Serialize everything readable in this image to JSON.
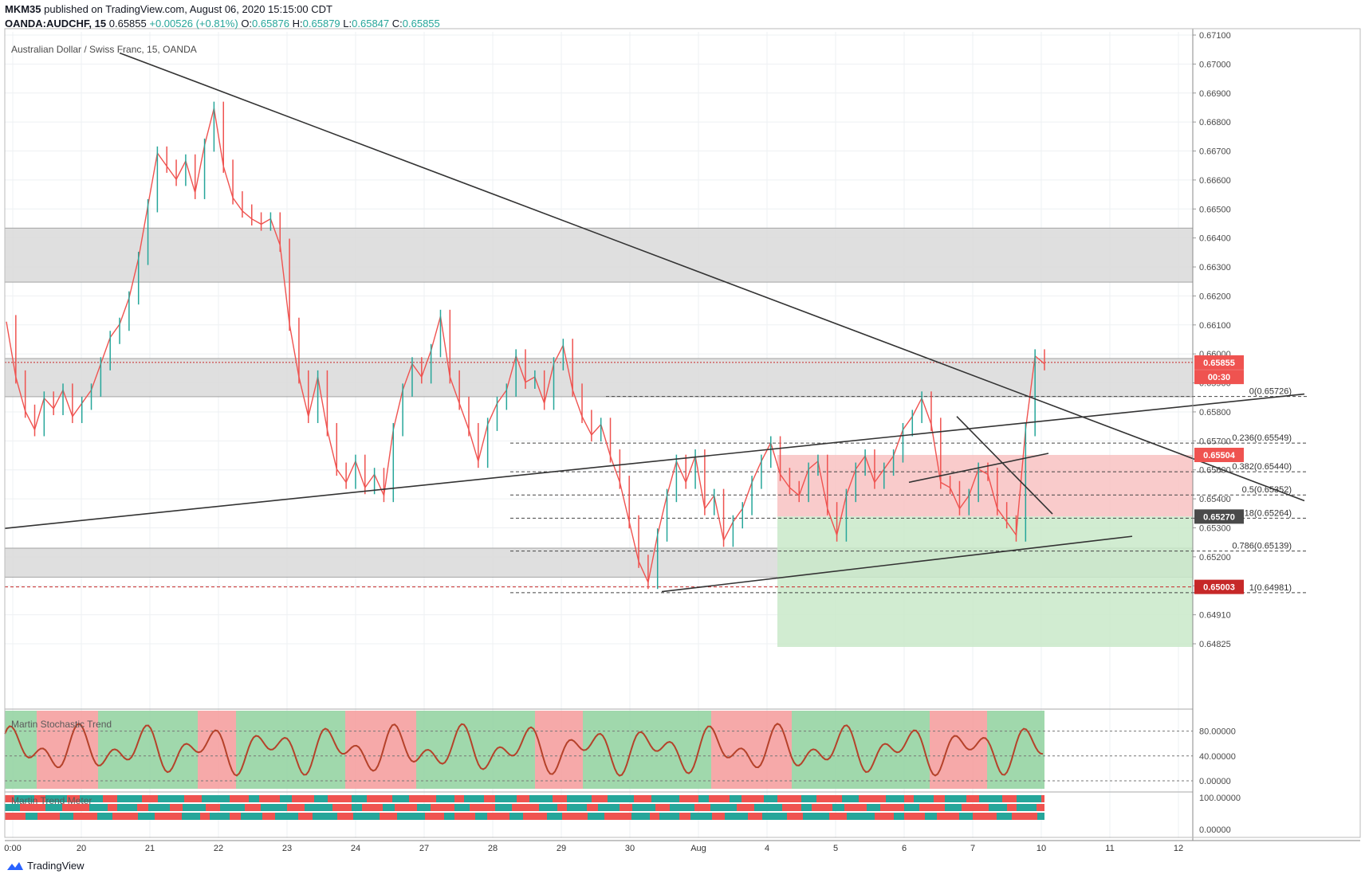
{
  "header": {
    "publisher": "MKM35",
    "published_text": "published on TradingView.com, August 06, 2020 15:15:00 CDT",
    "symbol": "OANDA:AUDCHF, 15",
    "last": "0.65855",
    "change": "+0.00526 (+0.81%)",
    "o_label": "O:",
    "o_val": "0.65876",
    "h_label": "H:",
    "h_val": "0.65879",
    "l_label": "L:",
    "l_val": "0.65847",
    "c_label": "C:",
    "c_val": "0.65855"
  },
  "chart_title": "Australian Dollar / Swiss Franc, 15, OANDA",
  "indicator1_label": "Martin Stochastic Trend",
  "indicator2_label": "Martin Trend Meter",
  "footer_brand": "TradingView",
  "colors": {
    "up": "#26a69a",
    "down": "#ef5350",
    "zone_gray": "#dcdcdc",
    "red_box": "#f8c2c2",
    "green_box": "#c9e9c9",
    "trend_line": "#333333",
    "price_line": "#c62828",
    "stoch_line": "#b5422a",
    "band_green": "#8fd19e",
    "band_red": "#f59a9a"
  },
  "chart_data": {
    "type": "line",
    "title": "Australian Dollar / Swiss Franc, 15, OANDA",
    "x_tick_labels": [
      "0:00",
      "20",
      "21",
      "22",
      "23",
      "24",
      "27",
      "28",
      "29",
      "30",
      "Aug",
      "4",
      "5",
      "6",
      "7",
      "10",
      "11",
      "12"
    ],
    "y_tick_labels": [
      "0.67100",
      "0.67000",
      "0.66900",
      "0.66800",
      "0.66700",
      "0.66600",
      "0.66500",
      "0.66400",
      "0.66300",
      "0.66200",
      "0.66100",
      "0.66000",
      "0.65900",
      "0.65800",
      "0.65700",
      "0.65600",
      "0.65400",
      "0.65300",
      "0.65200",
      "0.65100",
      "0.64910",
      "0.64825"
    ],
    "ylim": [
      0.64775,
      0.6711
    ],
    "series": [
      {
        "values": [
          0.6601,
          0.658,
          0.6567,
          0.656,
          0.6572,
          0.6568,
          0.6575,
          0.6565,
          0.657,
          0.6575,
          0.6585,
          0.6595,
          0.66,
          0.661,
          0.6625,
          0.6645,
          0.6665,
          0.666,
          0.6655,
          0.6662,
          0.665,
          0.6668,
          0.6682,
          0.666,
          0.6648,
          0.6643,
          0.664,
          0.6638,
          0.664,
          0.663,
          0.66,
          0.658,
          0.6565,
          0.658,
          0.656,
          0.6545,
          0.654,
          0.6548,
          0.6538,
          0.6543,
          0.6535,
          0.656,
          0.6575,
          0.6585,
          0.658,
          0.659,
          0.6603,
          0.658,
          0.657,
          0.656,
          0.6548,
          0.6562,
          0.657,
          0.6575,
          0.6588,
          0.6578,
          0.658,
          0.657,
          0.6585,
          0.6592,
          0.6575,
          0.6565,
          0.6558,
          0.6562,
          0.655,
          0.654,
          0.6525,
          0.651,
          0.6502,
          0.652,
          0.6535,
          0.6548,
          0.654,
          0.655,
          0.653,
          0.6535,
          0.6518,
          0.6525,
          0.653,
          0.654,
          0.6548,
          0.6555,
          0.6543,
          0.6538,
          0.6535,
          0.6545,
          0.6548,
          0.653,
          0.652,
          0.6535,
          0.6545,
          0.655,
          0.654,
          0.6545,
          0.655,
          0.656,
          0.6565,
          0.6572,
          0.6562,
          0.654,
          0.6538,
          0.653,
          0.6535,
          0.6545,
          0.6543,
          0.653,
          0.6525,
          0.652,
          0.656,
          0.6588,
          0.6585
        ],
        "approximate": true
      }
    ],
    "horizontal_levels": [
      {
        "label": "0(0.65726)",
        "value": 0.65726
      },
      {
        "label": "0.236(0.65549)",
        "value": 0.65549
      },
      {
        "label": "0.382(0.65440)",
        "value": 0.6544
      },
      {
        "label": "0.5(0.65352)",
        "value": 0.65352
      },
      {
        "label": "0.618(0.65264)",
        "value": 0.65264
      },
      {
        "label": "0.786(0.65139)",
        "value": 0.65139
      },
      {
        "label": "1(0.64981)",
        "value": 0.64981
      }
    ],
    "gray_zones": [
      {
        "from": 0.6616,
        "to": 0.66365
      },
      {
        "from": 0.65725,
        "to": 0.6587
      },
      {
        "from": 0.6504,
        "to": 0.6515
      }
    ],
    "price_tags": [
      {
        "label": "0.65855",
        "value": 0.65855,
        "color": "#ef5350"
      },
      {
        "label": "00:30",
        "value": 0.658,
        "color": "#ef5350"
      },
      {
        "label": "0.65504",
        "value": 0.65504,
        "color": "#ef5350"
      },
      {
        "label": "0.65270",
        "value": 0.6527,
        "color": "#4a4a4a"
      },
      {
        "label": "0.65003",
        "value": 0.65003,
        "color": "#c62828"
      }
    ],
    "stoch_ticks": [
      "80.00000",
      "40.00000",
      "0.00000"
    ],
    "meter_ticks": [
      "100.00000",
      "0.00000"
    ],
    "grid": true
  }
}
